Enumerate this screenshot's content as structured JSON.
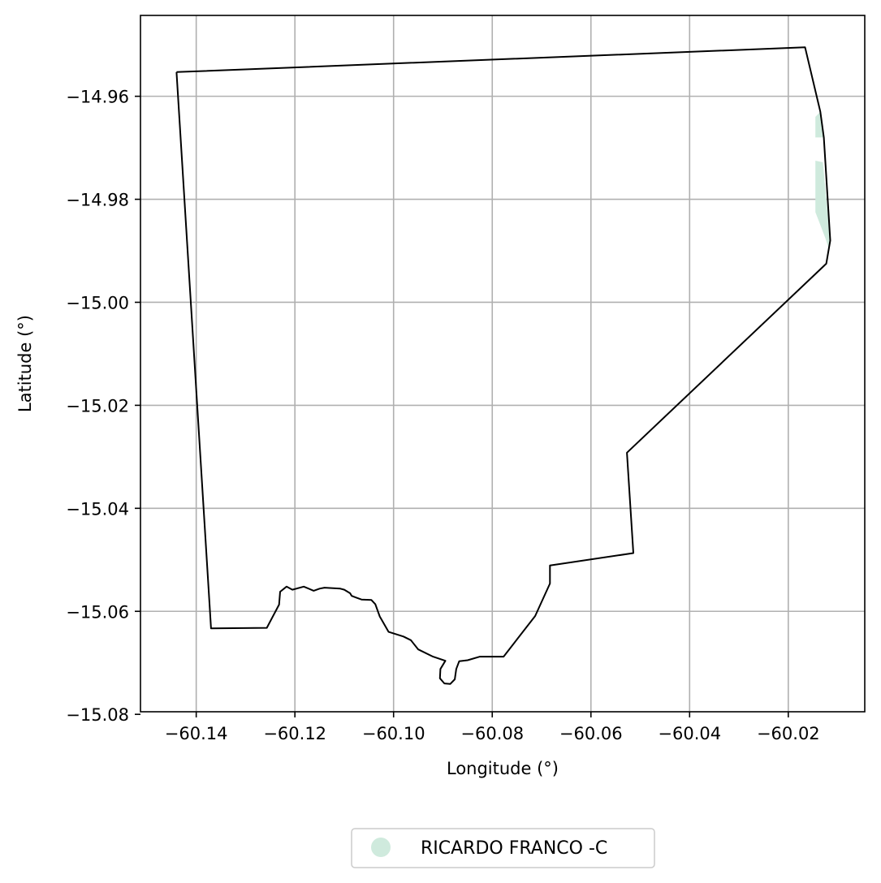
{
  "chart_data": {
    "type": "map",
    "xlabel": "Longitude (°)",
    "ylabel": "Latitude (°)",
    "xlim": [
      -60.1513,
      -60.0045
    ],
    "ylim": [
      -15.0795,
      -14.9443
    ],
    "xticks": [
      -60.14,
      -60.12,
      -60.1,
      -60.08,
      -60.06,
      -60.04,
      -60.02
    ],
    "xtick_labels": [
      "−60.14",
      "−60.12",
      "−60.10",
      "−60.08",
      "−60.06",
      "−60.04",
      "−60.02"
    ],
    "yticks": [
      -14.96,
      -14.98,
      -15.0,
      -15.02,
      -15.04,
      -15.06,
      -15.08
    ],
    "ytick_labels": [
      "−14.96",
      "−14.98",
      "−15.00",
      "−15.02",
      "−15.04",
      "−15.06",
      "−15.08"
    ],
    "grid": true,
    "legend_placement": "bottom-center",
    "legend": [
      {
        "label": "RICARDO FRANCO -C",
        "color": "#cfeadd"
      }
    ],
    "boundary": {
      "stroke": "#000000",
      "coords": [
        [
          -60.144,
          -14.9553
        ],
        [
          -60.0166,
          -14.9505
        ],
        [
          -60.0135,
          -14.963
        ],
        [
          -60.0128,
          -14.968
        ],
        [
          -60.0115,
          -14.988
        ],
        [
          -60.0123,
          -14.9925
        ],
        [
          -60.0527,
          -15.0292
        ],
        [
          -60.0514,
          -15.0487
        ],
        [
          -60.0683,
          -15.0511
        ],
        [
          -60.0683,
          -15.0546
        ],
        [
          -60.0713,
          -15.0609
        ],
        [
          -60.0777,
          -15.0688
        ],
        [
          -60.0825,
          -15.0688
        ],
        [
          -60.085,
          -15.0695
        ],
        [
          -60.0867,
          -15.0697
        ],
        [
          -60.0873,
          -15.0712
        ],
        [
          -60.0876,
          -15.0732
        ],
        [
          -60.0885,
          -15.0741
        ],
        [
          -60.0897,
          -15.074
        ],
        [
          -60.0906,
          -15.073
        ],
        [
          -60.0905,
          -15.0712
        ],
        [
          -60.0895,
          -15.0696
        ],
        [
          -60.092,
          -15.0688
        ],
        [
          -60.095,
          -15.0674
        ],
        [
          -60.0965,
          -15.0656
        ],
        [
          -60.098,
          -15.0649
        ],
        [
          -60.101,
          -15.064
        ],
        [
          -60.1028,
          -15.061
        ],
        [
          -60.1037,
          -15.0586
        ],
        [
          -60.1045,
          -15.0578
        ],
        [
          -60.1065,
          -15.0577
        ],
        [
          -60.1077,
          -15.0573
        ],
        [
          -60.1085,
          -15.057
        ],
        [
          -60.1088,
          -15.0565
        ],
        [
          -60.11,
          -15.0558
        ],
        [
          -60.1108,
          -15.0556
        ],
        [
          -60.114,
          -15.0554
        ],
        [
          -60.115,
          -15.0556
        ],
        [
          -60.1162,
          -15.056
        ],
        [
          -60.1182,
          -15.0552
        ],
        [
          -60.1205,
          -15.0558
        ],
        [
          -60.1217,
          -15.0552
        ],
        [
          -60.123,
          -15.0562
        ],
        [
          -60.1232,
          -15.0587
        ],
        [
          -60.1257,
          -15.0632
        ],
        [
          -60.137,
          -15.0633
        ],
        [
          -60.144,
          -14.9553
        ]
      ]
    },
    "regions": [
      {
        "name": "RICARDO FRANCO -C",
        "color": "#cfeadd",
        "polygons": [
          [
            [
              -60.0145,
              -14.964
            ],
            [
              -60.0135,
              -14.963
            ],
            [
              -60.0128,
              -14.968
            ],
            [
              -60.0145,
              -14.968
            ]
          ],
          [
            [
              -60.0145,
              -14.9725
            ],
            [
              -60.013,
              -14.9728
            ],
            [
              -60.0115,
              -14.988
            ],
            [
              -60.0118,
              -14.9895
            ],
            [
              -60.0125,
              -14.9875
            ],
            [
              -60.0135,
              -14.985
            ],
            [
              -60.0145,
              -14.9825
            ]
          ]
        ]
      }
    ]
  }
}
